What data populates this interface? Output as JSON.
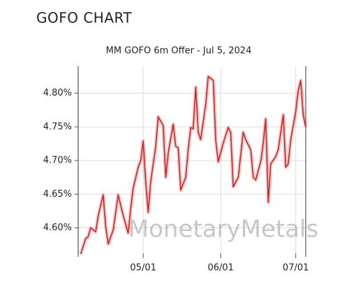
{
  "header": "GOFO CHART",
  "chart_data": {
    "type": "line",
    "title": "MM GOFO 6m Offer - Jul 5, 2024",
    "watermark": "MonetaryMetals",
    "x": [
      "04/06",
      "04/08",
      "04/09",
      "04/10",
      "04/12",
      "04/13",
      "04/15",
      "04/16",
      "04/17",
      "04/19",
      "04/21",
      "04/23",
      "04/25",
      "04/26",
      "04/27",
      "04/29",
      "04/30",
      "05/01",
      "05/02",
      "05/03",
      "05/04",
      "05/06",
      "05/07",
      "05/09",
      "05/10",
      "05/11",
      "05/13",
      "05/14",
      "05/15",
      "05/16",
      "05/18",
      "05/19",
      "05/20",
      "05/21",
      "05/22",
      "05/23",
      "05/24",
      "05/26",
      "05/27",
      "05/29",
      "05/30",
      "05/31",
      "06/02",
      "06/04",
      "06/05",
      "06/06",
      "06/08",
      "06/09",
      "06/10",
      "06/11",
      "06/13",
      "06/14",
      "06/15",
      "06/16",
      "06/17",
      "06/18",
      "06/19",
      "06/20",
      "06/21",
      "06/23",
      "06/24",
      "06/26",
      "06/27",
      "06/28",
      "06/29",
      "07/01",
      "07/02",
      "07/03",
      "07/04",
      "07/05"
    ],
    "series": [
      {
        "name": "MM GOFO 6m Offer",
        "color": "#d92323",
        "values": [
          4.561,
          4.584,
          4.587,
          4.6,
          4.594,
          4.618,
          4.649,
          4.602,
          4.576,
          4.597,
          4.649,
          4.618,
          4.592,
          4.628,
          4.659,
          4.69,
          4.7,
          4.729,
          4.669,
          4.623,
          4.669,
          4.721,
          4.765,
          4.752,
          4.675,
          4.711,
          4.754,
          4.721,
          4.719,
          4.656,
          4.675,
          4.716,
          4.749,
          4.747,
          4.809,
          4.742,
          4.731,
          4.783,
          4.825,
          4.819,
          4.731,
          4.698,
          4.726,
          4.749,
          4.742,
          4.661,
          4.675,
          4.709,
          4.742,
          4.731,
          4.716,
          4.675,
          4.671,
          4.685,
          4.698,
          4.726,
          4.762,
          4.638,
          4.695,
          4.706,
          4.716,
          4.768,
          4.69,
          4.695,
          4.731,
          4.773,
          4.804,
          4.819,
          4.768,
          4.75
        ]
      }
    ],
    "xlim": [
      "04/05",
      "07/05"
    ],
    "xticks": [
      "05/01",
      "06/01",
      "07/01"
    ],
    "ylim": [
      4.557,
      4.84
    ],
    "yticks": [
      {
        "value": 4.6,
        "label": "4.60%"
      },
      {
        "value": 4.65,
        "label": "4.65%"
      },
      {
        "value": 4.7,
        "label": "4.70%"
      },
      {
        "value": 4.75,
        "label": "4.75%"
      },
      {
        "value": 4.8,
        "label": "4.80%"
      }
    ],
    "grid": true
  }
}
